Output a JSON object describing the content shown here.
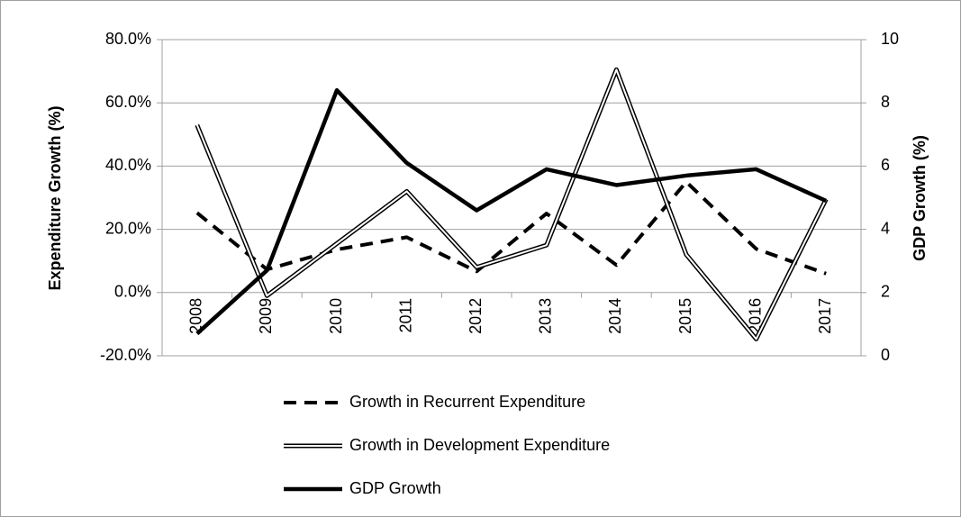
{
  "chart_data": {
    "type": "line",
    "y_label": "Expenditure Growth (%)",
    "y2_label": "GDP Growth (%)",
    "categories": [
      "2008",
      "2009",
      "2010",
      "2011",
      "2012",
      "2013",
      "2014",
      "2015",
      "2016",
      "2017"
    ],
    "series": [
      {
        "name": "Growth in Recurrent Expenditure",
        "color": "#000000",
        "style": "dashed",
        "values": [
          25.2,
          7.3,
          13.6,
          17.5,
          6.7,
          25,
          8.7,
          35,
          13.8,
          6
        ]
      },
      {
        "name": "Growth in Development Expenditure",
        "color": "#000000",
        "style": "double",
        "values": [
          53,
          -1,
          15.5,
          32,
          8,
          15,
          70.5,
          12,
          -14.7,
          29.5
        ]
      },
      {
        "name": "GDP Growth",
        "color": "#000000",
        "style": "solid",
        "axis": "y2",
        "values": [
          0.7,
          2.7,
          8.4,
          6.1,
          4.6,
          5.9,
          5.4,
          5.7,
          5.9,
          4.9
        ]
      }
    ],
    "ylim": [
      -20,
      80
    ],
    "yticks": [
      {
        "value": -20,
        "label": "-20.0%"
      },
      {
        "value": 0,
        "label": "0.0%"
      },
      {
        "value": 20,
        "label": "20.0%"
      },
      {
        "value": 40,
        "label": "40.0%"
      },
      {
        "value": 60,
        "label": "60.0%"
      },
      {
        "value": 80,
        "label": "80.0%"
      }
    ],
    "y2lim": [
      0,
      10
    ],
    "y2ticks": [
      0,
      2,
      4,
      6,
      8,
      10
    ],
    "grid": true,
    "legend": "bottom"
  }
}
